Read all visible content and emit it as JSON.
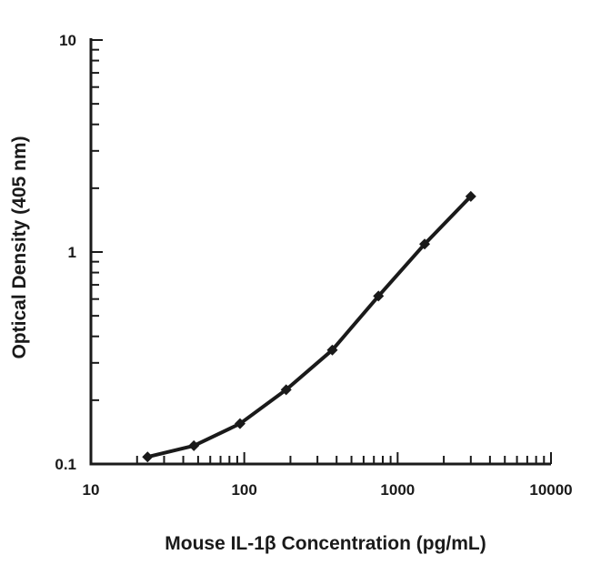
{
  "chart_data": {
    "type": "line",
    "title": "",
    "xlabel": "Mouse IL-1β Concentration (pg/mL)",
    "ylabel": "Optical Density (405 nm)",
    "xscale": "log",
    "yscale": "log",
    "xlim": [
      10,
      10000
    ],
    "ylim": [
      0.1,
      10
    ],
    "xticks": [
      "10",
      "100",
      "1000",
      "10000"
    ],
    "yticks": [
      "0.1",
      "1",
      "10"
    ],
    "grid": false,
    "legend": "none",
    "series": [
      {
        "x": [
          23.4,
          46.9,
          93.8,
          187.5,
          375,
          750,
          1500,
          3000
        ],
        "y": [
          0.108,
          0.122,
          0.155,
          0.224,
          0.345,
          0.62,
          1.09,
          1.83
        ]
      }
    ],
    "colors": {
      "line": "#1a1a1a",
      "marker": "#1a1a1a"
    }
  }
}
